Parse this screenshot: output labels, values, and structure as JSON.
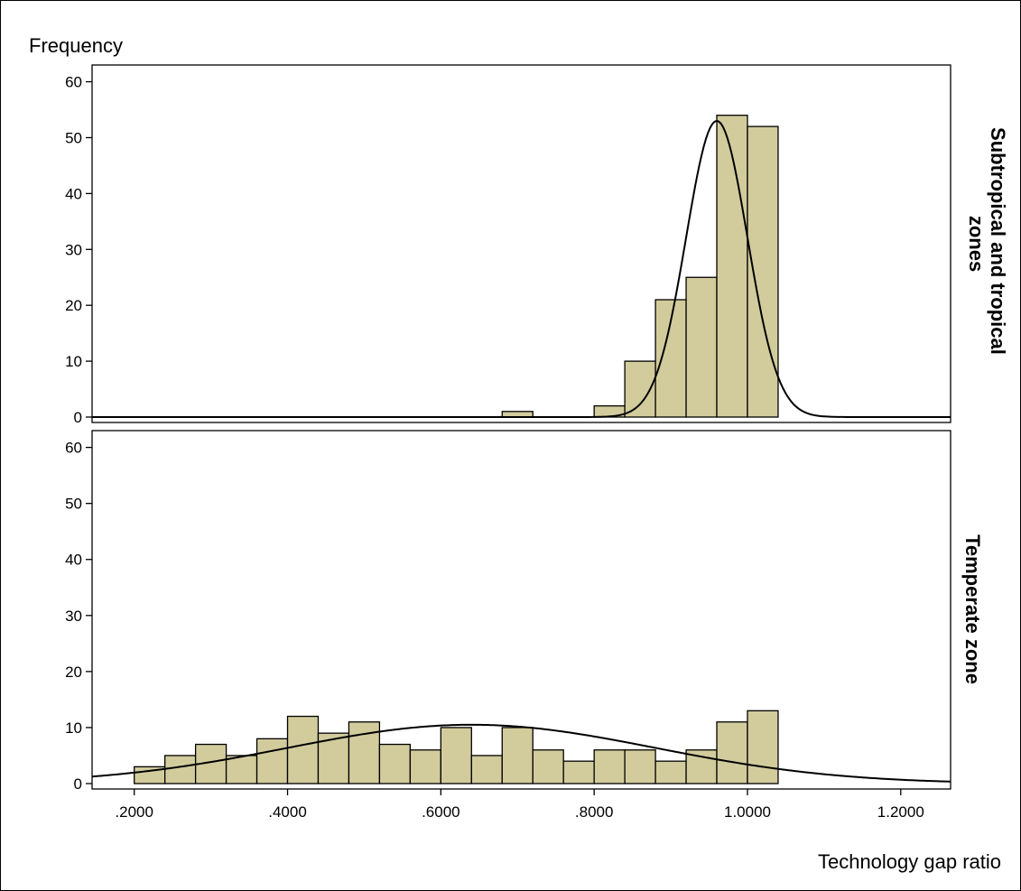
{
  "chart_data": {
    "type": "bar",
    "ylabel": "Frequency",
    "xlabel": "Technology gap ratio",
    "xlim": [
      0.145,
      1.265
    ],
    "ylim": [
      0,
      63
    ],
    "y_ticks": [
      0,
      10,
      20,
      30,
      40,
      50,
      60
    ],
    "y_tick_labels": [
      "0",
      "10",
      "20",
      "30",
      "40",
      "50",
      "60"
    ],
    "x_ticks": [
      0.2,
      0.4,
      0.6,
      0.8,
      1.0,
      1.2
    ],
    "x_tick_labels": [
      ".2000",
      ".4000",
      ".6000",
      ".8000",
      "1.0000",
      "1.2000"
    ],
    "bin_width": 0.04,
    "grid": false,
    "bar_color": "#d2cc9d",
    "panels": [
      {
        "label": "Subtropical and tropical zones",
        "bins_start": [
          0.68,
          0.8,
          0.84,
          0.88,
          0.92,
          0.96,
          1.0
        ],
        "values": [
          1,
          2,
          10,
          21,
          25,
          54,
          52
        ],
        "normal_curve": {
          "mean": 0.96,
          "sd": 0.04,
          "peak": 53
        }
      },
      {
        "label": "Temperate zone",
        "bins_start": [
          0.2,
          0.24,
          0.28,
          0.32,
          0.36,
          0.4,
          0.44,
          0.48,
          0.52,
          0.56,
          0.6,
          0.64,
          0.68,
          0.72,
          0.76,
          0.8,
          0.84,
          0.88,
          0.92,
          0.96,
          1.0
        ],
        "values": [
          3,
          5,
          7,
          5,
          8,
          12,
          9,
          11,
          7,
          6,
          10,
          5,
          10,
          6,
          4,
          6,
          6,
          4,
          6,
          11,
          13
        ],
        "normal_curve": {
          "mean": 0.64,
          "sd": 0.24,
          "peak": 10.5
        }
      }
    ]
  }
}
